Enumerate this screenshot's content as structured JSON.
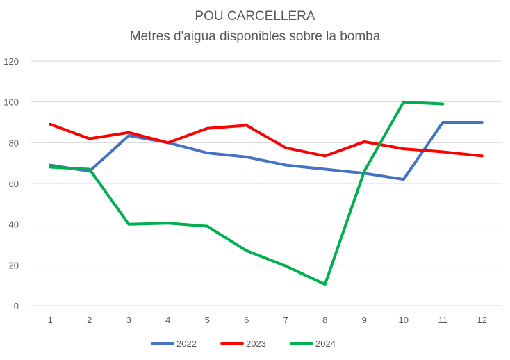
{
  "chart_data": {
    "type": "line",
    "title": "POU CARCELLERA",
    "subtitle": "Metres d'aigua disponibles sobre la bomba",
    "xlabel": "",
    "ylabel": "",
    "categories": [
      "1",
      "2",
      "3",
      "4",
      "5",
      "6",
      "7",
      "8",
      "9",
      "10",
      "11",
      "12"
    ],
    "ylim": [
      0,
      120
    ],
    "yticks": [
      "0",
      "20",
      "40",
      "60",
      "80",
      "100",
      "120"
    ],
    "grid": true,
    "legend_position": "bottom",
    "series": [
      {
        "name": "2022",
        "color": "#4472c4",
        "values": [
          69,
          66,
          83.5,
          80,
          75,
          73,
          69,
          67,
          65,
          62,
          90,
          90
        ]
      },
      {
        "name": "2023",
        "color": "#ff0000",
        "values": [
          89,
          82,
          85,
          80,
          87,
          88.5,
          77.5,
          73.5,
          80.5,
          77,
          75.5,
          73.5
        ]
      },
      {
        "name": "2024",
        "color": "#00b050",
        "values": [
          68,
          67,
          40,
          40.5,
          39,
          27,
          19.5,
          10.5,
          66,
          100,
          99,
          null
        ]
      }
    ]
  }
}
